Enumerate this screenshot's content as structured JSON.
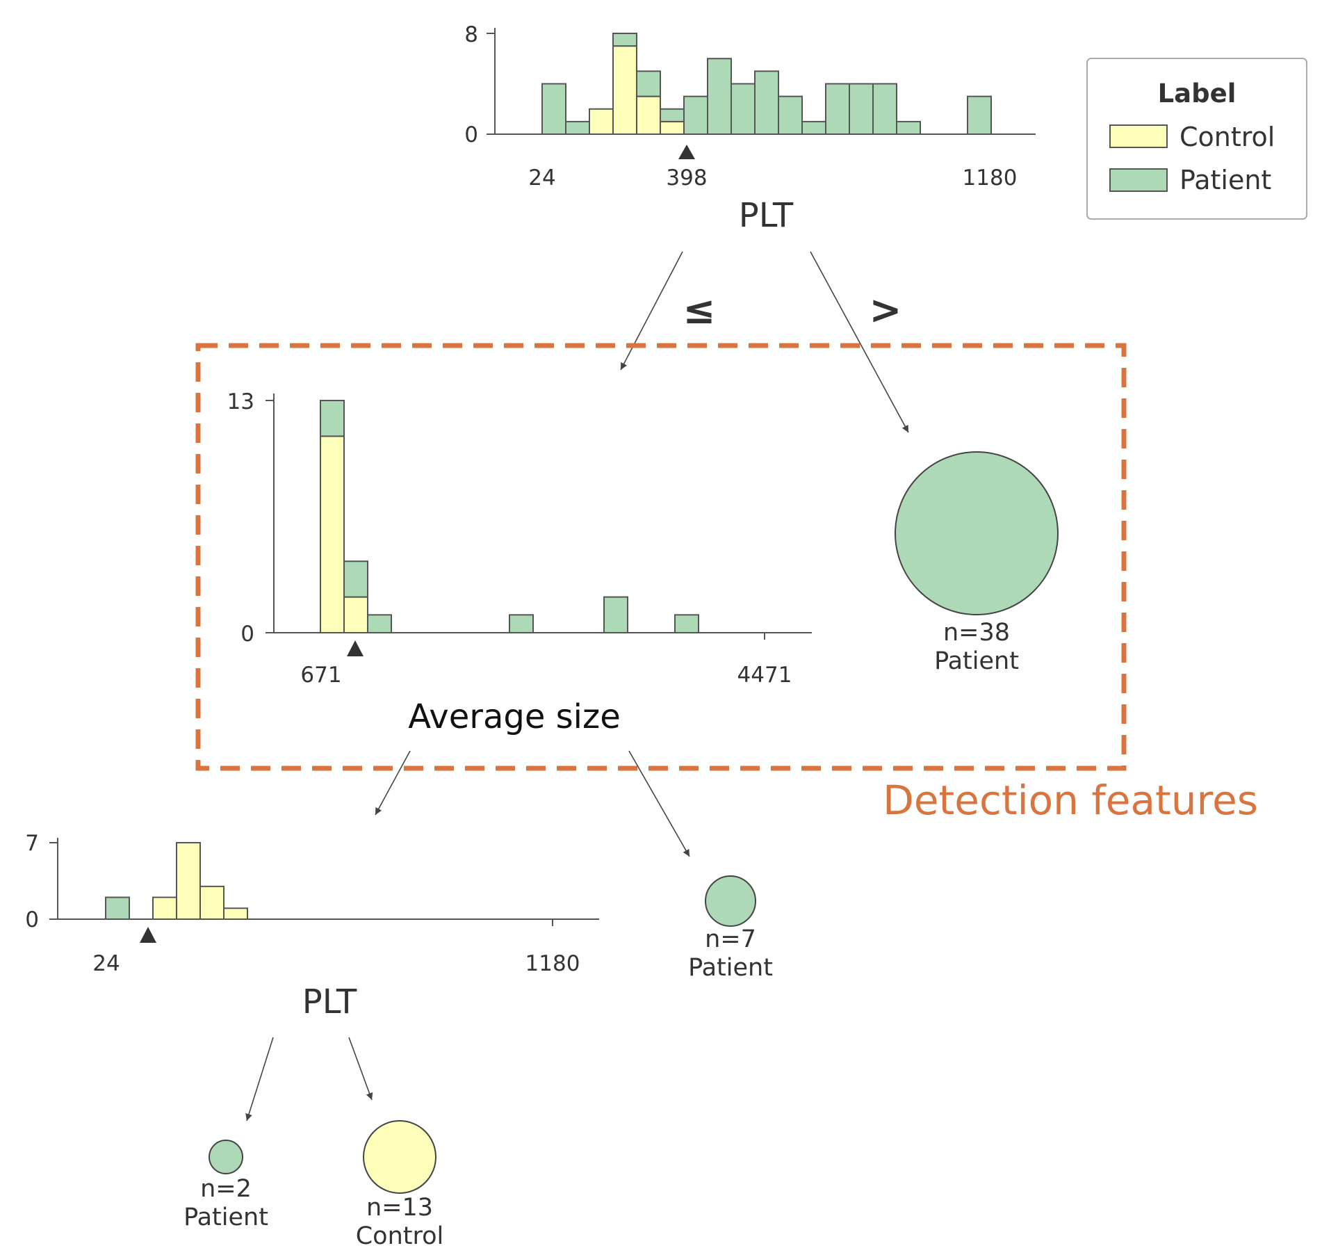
{
  "colors": {
    "control": "#FEFEBB",
    "patient": "#AED9B6",
    "highlight": "#D9743E",
    "edge": "#444444"
  },
  "legend": {
    "title": "Label",
    "items": [
      {
        "label": "Control",
        "color": "#FEFEBB"
      },
      {
        "label": "Patient",
        "color": "#AED9B6"
      }
    ]
  },
  "operators": {
    "le": "≤",
    "gt": ">"
  },
  "highlight_label": "Detection features",
  "chart_data": [
    {
      "type": "bar",
      "node": "root",
      "feature": "PLT",
      "stacked": true,
      "xticks": [
        "24",
        "398",
        "1180"
      ],
      "split_marker": 398,
      "ylim": [
        0,
        8
      ],
      "yticks": [
        "0",
        "8"
      ],
      "series": [
        {
          "name": "Control",
          "values": [
            0,
            0,
            2,
            7,
            3,
            1,
            0,
            0,
            0,
            0,
            0,
            0,
            0,
            0,
            0,
            0,
            0,
            0,
            0
          ]
        },
        {
          "name": "Patient",
          "values": [
            4,
            1,
            0,
            1,
            2,
            1,
            3,
            6,
            4,
            5,
            3,
            1,
            4,
            4,
            4,
            1,
            0,
            0,
            3
          ]
        }
      ]
    },
    {
      "type": "bar",
      "node": "left-internal",
      "feature": "Average size",
      "stacked": true,
      "xticks": [
        "671",
        "4471"
      ],
      "split_marker": 1200,
      "ylim": [
        0,
        13
      ],
      "yticks": [
        "0",
        "13"
      ],
      "series": [
        {
          "name": "Control",
          "values": [
            11,
            2,
            0,
            0,
            0,
            0,
            0,
            0,
            0,
            0,
            0,
            0,
            0,
            0,
            0,
            0
          ]
        },
        {
          "name": "Patient",
          "values": [
            2,
            2,
            1,
            0,
            0,
            0,
            0,
            0,
            1,
            0,
            0,
            0,
            2,
            0,
            0,
            1
          ]
        }
      ]
    },
    {
      "type": "bar",
      "node": "left-left",
      "feature": "PLT",
      "stacked": true,
      "xticks": [
        "24",
        "1180"
      ],
      "split_marker": 128,
      "ylim": [
        0,
        7
      ],
      "yticks": [
        "0",
        "7"
      ],
      "series": [
        {
          "name": "Control",
          "values": [
            0,
            0,
            2,
            7,
            3,
            1
          ]
        },
        {
          "name": "Patient",
          "values": [
            2,
            0,
            0,
            0,
            0,
            0
          ]
        }
      ]
    }
  ],
  "leaves": [
    {
      "id": "leaf-root-gt",
      "n": "n=38",
      "class": "Patient"
    },
    {
      "id": "leaf-size-gt",
      "n": "n=7",
      "class": "Patient"
    },
    {
      "id": "leaf-plt-le",
      "n": "n=2",
      "class": "Patient"
    },
    {
      "id": "leaf-plt-gt",
      "n": "n=13",
      "class": "Control"
    }
  ]
}
